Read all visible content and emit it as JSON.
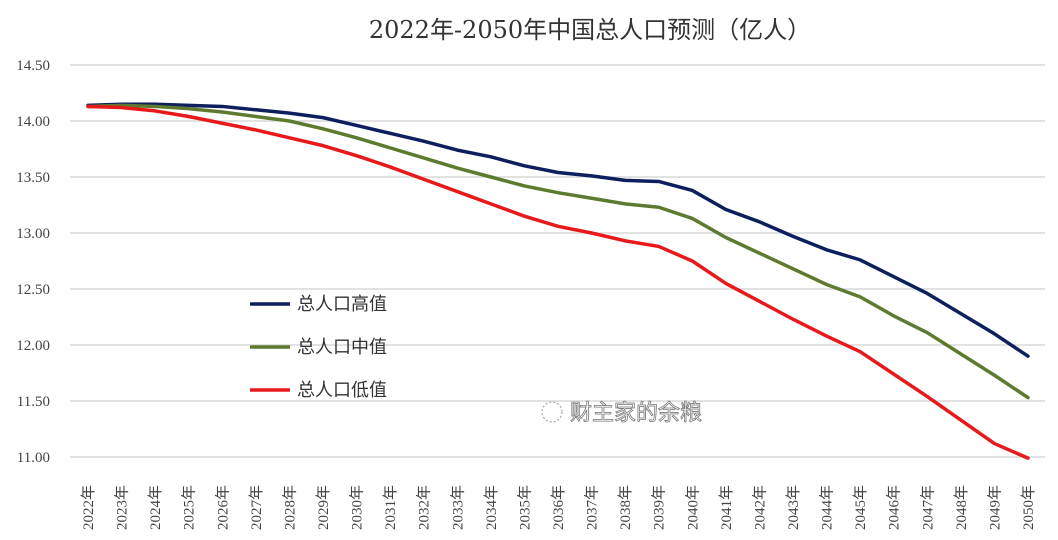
{
  "chart_data": {
    "type": "line",
    "title": "2022年-2050年中国总人口预测（亿人）",
    "xlabel": "",
    "ylabel": "",
    "ylim": [
      11.0,
      14.5
    ],
    "yticks": [
      "14.50",
      "14.00",
      "13.50",
      "13.00",
      "12.50",
      "12.00",
      "11.50",
      "11.00"
    ],
    "grid": true,
    "legend_position": "center-left",
    "categories": [
      "2022年",
      "2023年",
      "2024年",
      "2025年",
      "2026年",
      "2027年",
      "2028年",
      "2029年",
      "2030年",
      "2031年",
      "2032年",
      "2033年",
      "2034年",
      "2035年",
      "2036年",
      "2037年",
      "2038年",
      "2039年",
      "2040年",
      "2041年",
      "2042年",
      "2043年",
      "2044年",
      "2045年",
      "2046年",
      "2047年",
      "2048年",
      "2049年",
      "2050年"
    ],
    "series": [
      {
        "name": "总人口高值",
        "color": "#0d1f5c",
        "values": [
          14.14,
          14.15,
          14.15,
          14.14,
          14.13,
          14.1,
          14.07,
          14.03,
          13.96,
          13.89,
          13.82,
          13.74,
          13.68,
          13.6,
          13.54,
          13.51,
          13.47,
          13.46,
          13.38,
          13.21,
          13.1,
          12.97,
          12.85,
          12.76,
          12.61,
          12.46,
          12.28,
          12.1,
          11.9
        ]
      },
      {
        "name": "总人口中值",
        "color": "#5e7a2e",
        "values": [
          14.13,
          14.14,
          14.13,
          14.11,
          14.08,
          14.04,
          14.0,
          13.93,
          13.85,
          13.76,
          13.67,
          13.58,
          13.5,
          13.42,
          13.36,
          13.31,
          13.26,
          13.23,
          13.13,
          12.96,
          12.82,
          12.68,
          12.54,
          12.43,
          12.26,
          12.11,
          11.92,
          11.73,
          11.53
        ]
      },
      {
        "name": "总人口低值",
        "color": "#e8191b",
        "values": [
          14.13,
          14.12,
          14.09,
          14.04,
          13.98,
          13.92,
          13.85,
          13.78,
          13.69,
          13.59,
          13.48,
          13.37,
          13.26,
          13.15,
          13.06,
          13.0,
          12.93,
          12.88,
          12.75,
          12.55,
          12.39,
          12.23,
          12.08,
          11.94,
          11.74,
          11.54,
          11.33,
          11.12,
          10.99
        ]
      }
    ]
  },
  "watermark": "财主家的余粮"
}
